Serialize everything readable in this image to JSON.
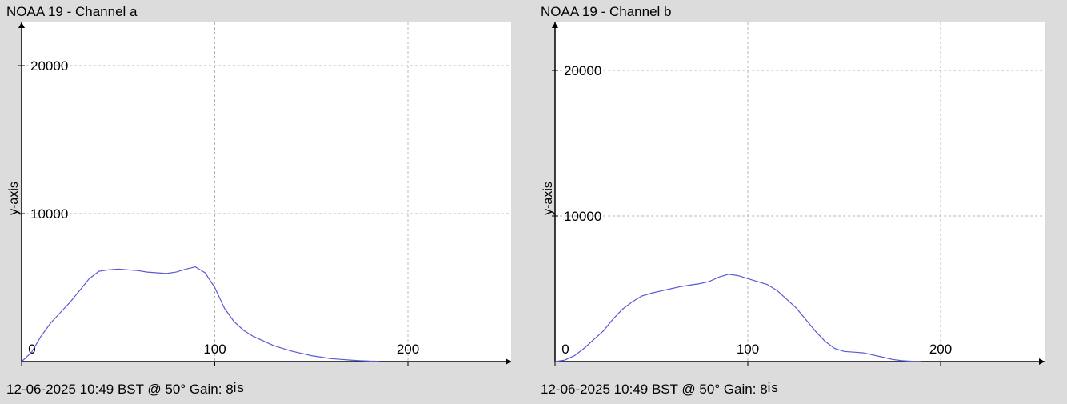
{
  "panels": [
    {
      "title": "NOAA 19 - Channel a",
      "footer": "12-06-2025 10:49 BST @ 50° Gain: 8",
      "footer_suffix": "is"
    },
    {
      "title": "NOAA 19 - Channel b",
      "footer": "12-06-2025 10:49 BST @ 50° Gain: 8",
      "footer_suffix": "is"
    }
  ],
  "colors": {
    "background": "#dcdcdc",
    "plot_background": "#ffffff",
    "line": "#5a5ad2",
    "grid": "#b4b4b4",
    "axis": "#000000"
  },
  "chart_data": [
    {
      "type": "line",
      "title": "NOAA 19 - Channel a",
      "xlabel": "",
      "ylabel": "y-axis",
      "xlim": [
        0,
        255
      ],
      "ylim": [
        0,
        23000
      ],
      "xticks": [
        0,
        100,
        200
      ],
      "yticks": [
        0,
        10000,
        20000
      ],
      "grid": true,
      "series": [
        {
          "x": [
            0,
            5,
            10,
            15,
            20,
            25,
            30,
            35,
            40,
            45,
            50,
            55,
            60,
            65,
            70,
            75,
            80,
            85,
            90,
            95,
            100,
            105,
            110,
            115,
            120,
            125,
            130,
            135,
            140,
            145,
            150,
            155,
            160,
            165,
            170,
            175,
            180,
            185
          ],
          "y": [
            0,
            600,
            1700,
            2600,
            3300,
            4000,
            4800,
            5600,
            6100,
            6200,
            6250,
            6200,
            6150,
            6050,
            6000,
            5950,
            6050,
            6250,
            6400,
            6000,
            5000,
            3600,
            2700,
            2100,
            1700,
            1400,
            1100,
            900,
            700,
            550,
            400,
            300,
            200,
            150,
            100,
            60,
            30,
            20
          ]
        }
      ]
    },
    {
      "type": "line",
      "title": "NOAA 19 - Channel b",
      "xlabel": "",
      "ylabel": "y-axis",
      "xlim": [
        0,
        255
      ],
      "ylim": [
        0,
        23000
      ],
      "xticks": [
        0,
        100,
        200
      ],
      "yticks": [
        0,
        10000,
        20000
      ],
      "grid": true,
      "series": [
        {
          "x": [
            0,
            5,
            10,
            15,
            20,
            25,
            30,
            35,
            40,
            45,
            50,
            55,
            60,
            65,
            70,
            75,
            80,
            85,
            90,
            95,
            100,
            105,
            110,
            115,
            120,
            125,
            130,
            135,
            140,
            145,
            150,
            155,
            160,
            165,
            170,
            175,
            180,
            185,
            190
          ],
          "y": [
            0,
            100,
            400,
            900,
            1500,
            2100,
            2900,
            3600,
            4100,
            4500,
            4700,
            4850,
            5000,
            5150,
            5250,
            5350,
            5500,
            5800,
            6000,
            5900,
            5700,
            5500,
            5300,
            4900,
            4300,
            3700,
            2900,
            2100,
            1400,
            900,
            700,
            650,
            600,
            450,
            300,
            150,
            60,
            20,
            10
          ]
        }
      ]
    }
  ]
}
